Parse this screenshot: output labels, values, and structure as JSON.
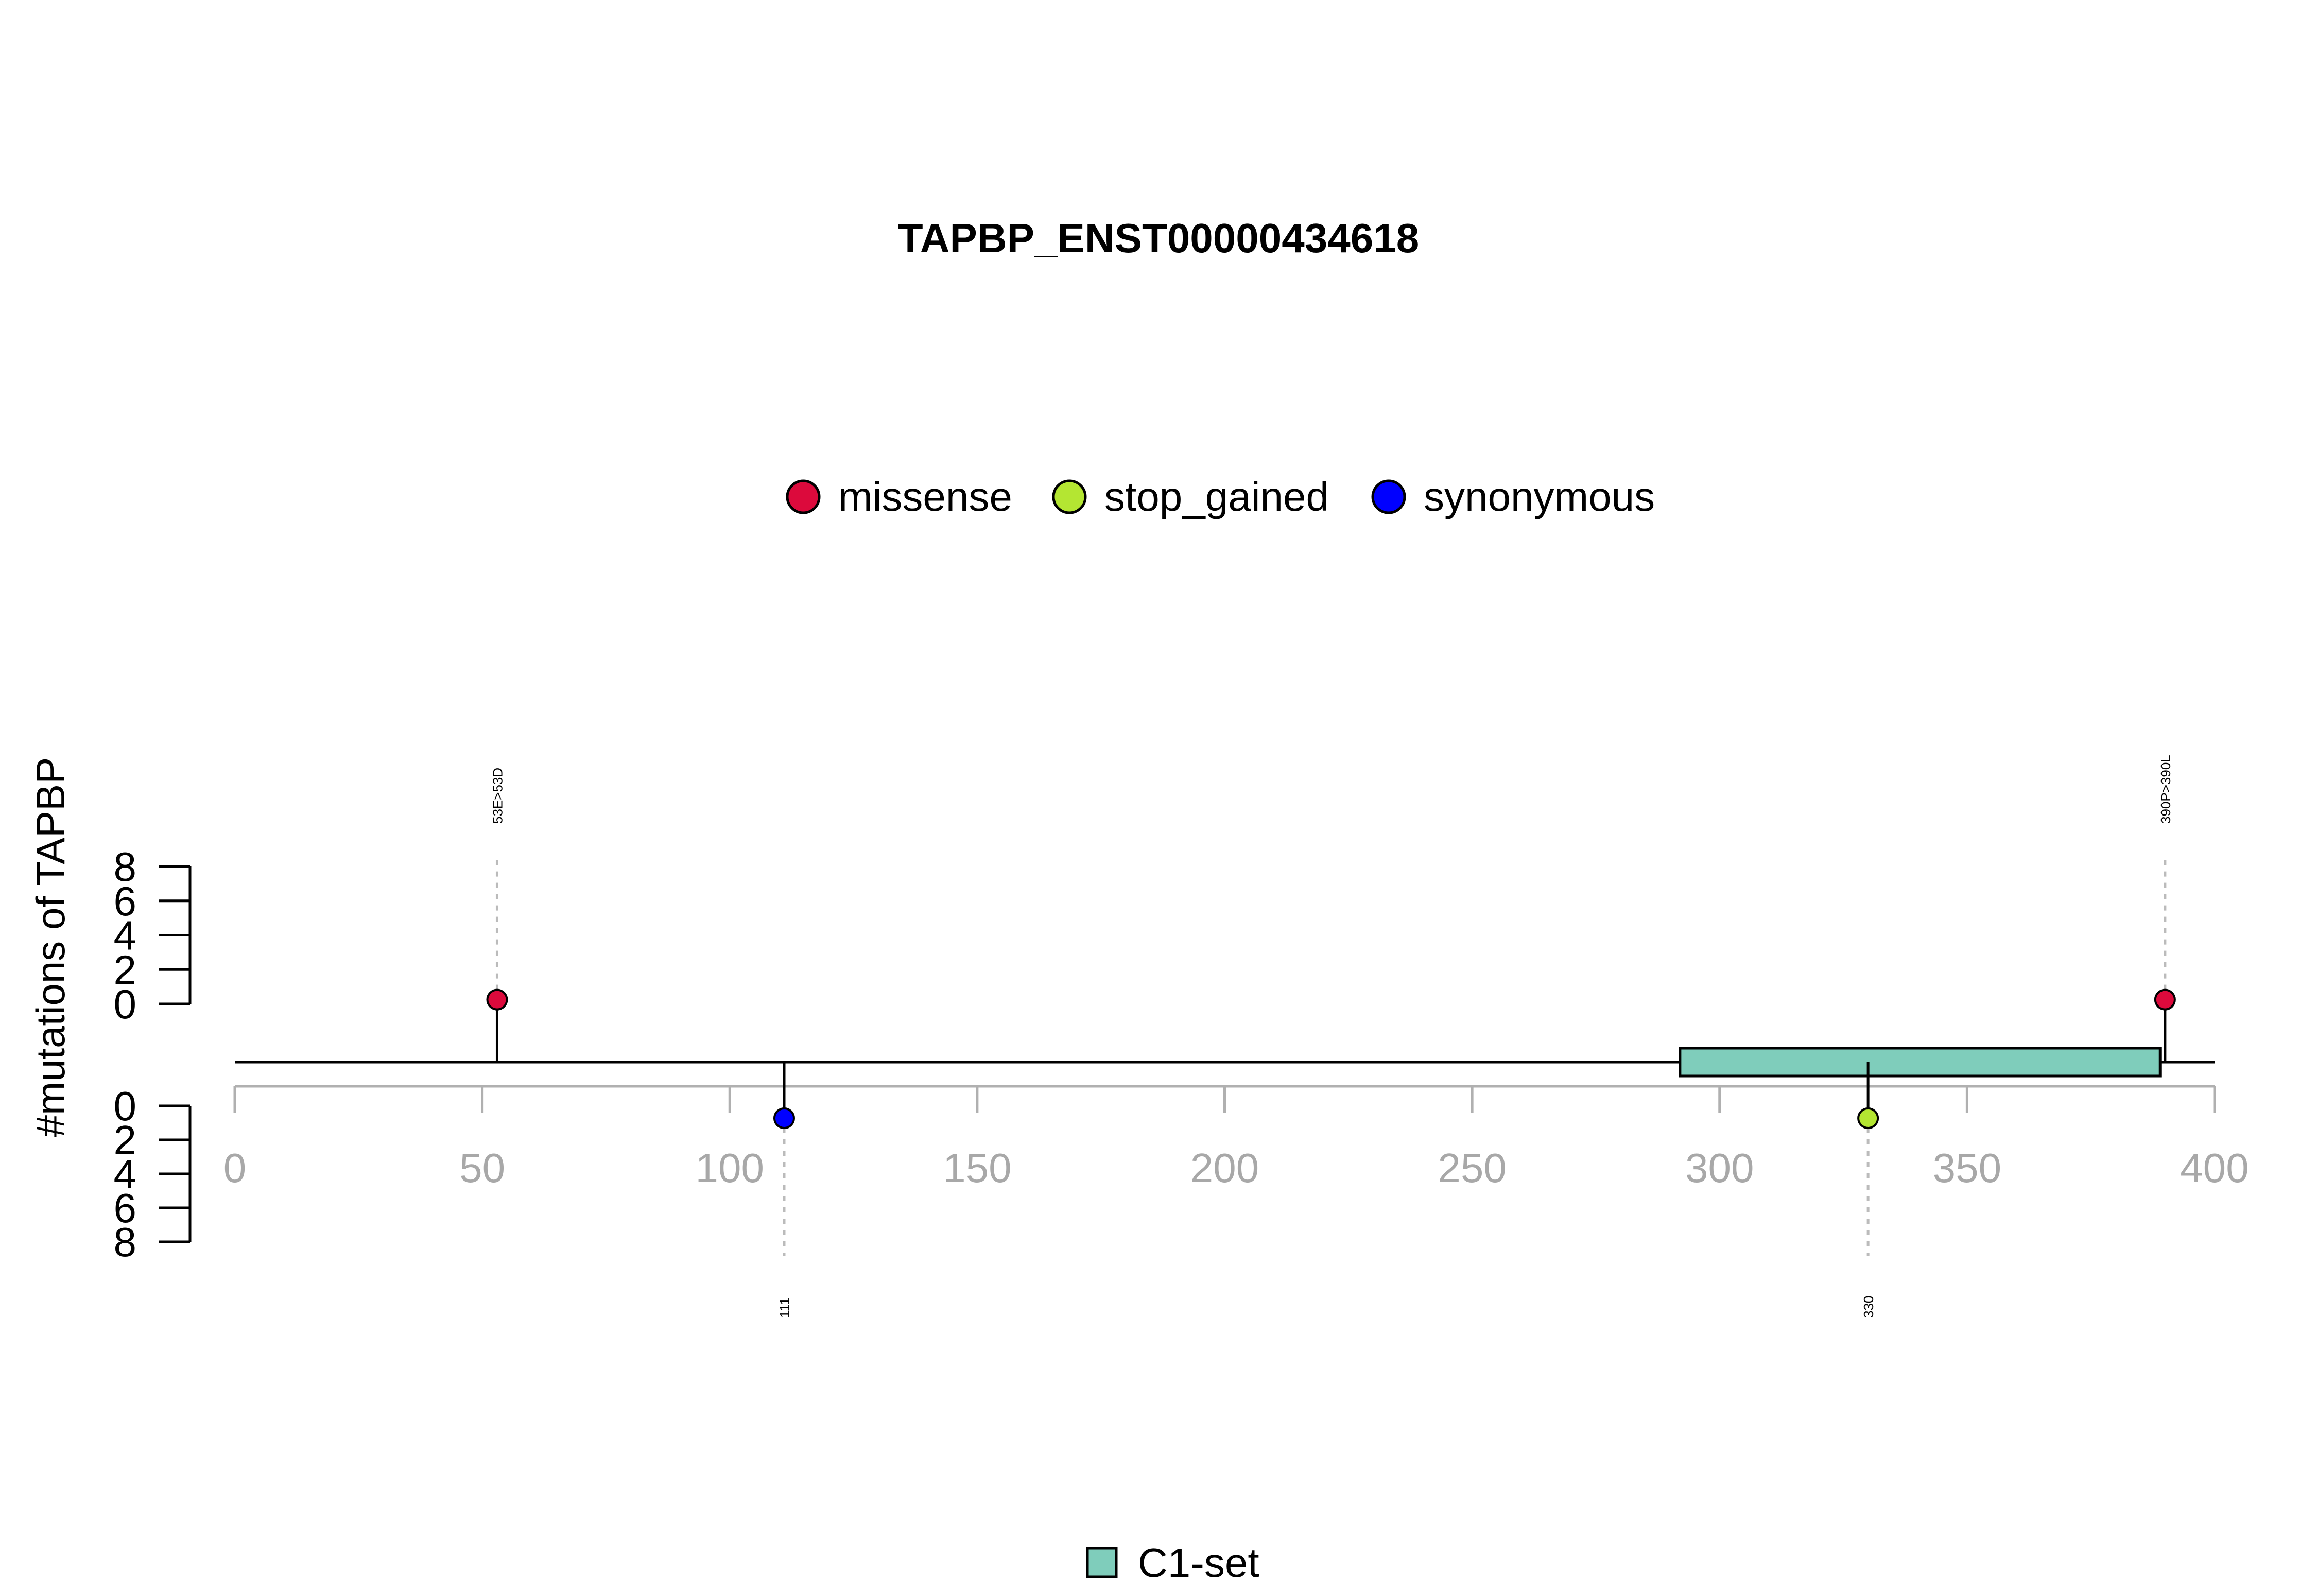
{
  "chart_data": {
    "type": "lollipop",
    "title": "TAPBP_ENST00000434618",
    "ylabel": "#mutations of TAPBP",
    "xlim": [
      0,
      400
    ],
    "x_ticks": [
      "0",
      "50",
      "100",
      "150",
      "200",
      "250",
      "300",
      "350",
      "400"
    ],
    "y_ticks": [
      "0",
      "2",
      "4",
      "6",
      "8"
    ],
    "ylim": [
      0,
      8
    ],
    "legend": [
      {
        "label": "missense",
        "color": "#DC0A3C"
      },
      {
        "label": "stop_gained",
        "color": "#B4E632"
      },
      {
        "label": "synonymous",
        "color": "#0000FF"
      }
    ],
    "mutations": [
      {
        "position": 53,
        "label": "53E>53D",
        "type": "missense",
        "count": 1,
        "side": "top"
      },
      {
        "position": 111,
        "label": "111",
        "type": "synonymous",
        "count": 1,
        "side": "bottom"
      },
      {
        "position": 330,
        "label": "330",
        "type": "stop_gained",
        "count": 1,
        "side": "bottom"
      },
      {
        "position": 390,
        "label": "390P>390L",
        "type": "missense",
        "count": 1,
        "side": "top"
      }
    ],
    "domains": [
      {
        "name": "C1-set",
        "start": 292,
        "end": 389,
        "color": "#7FCDBB"
      }
    ],
    "domain_legend": [
      {
        "label": "C1-set",
        "color": "#7FCDBB"
      }
    ]
  }
}
